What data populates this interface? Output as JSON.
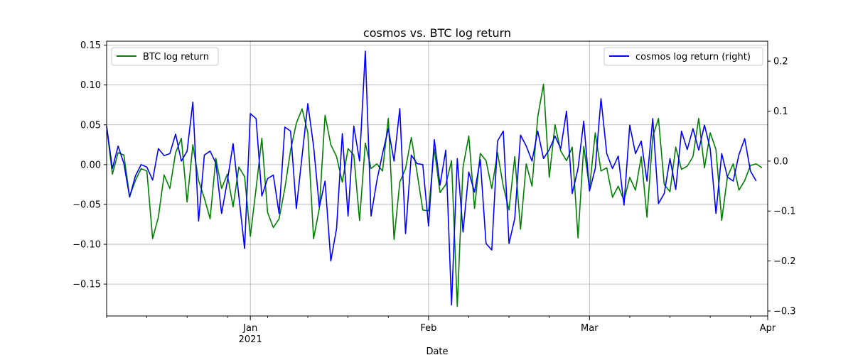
{
  "chart_data": {
    "type": "line",
    "title": "cosmos vs. BTC log return",
    "xlabel": "Date",
    "ylabel_left": "",
    "ylabel_right": "",
    "x_ticks": [
      {
        "date": "2021-01-01",
        "label": "Jan",
        "sublabel": "2021"
      },
      {
        "date": "2021-02-01",
        "label": "Feb",
        "sublabel": ""
      },
      {
        "date": "2021-03-01",
        "label": "Mar",
        "sublabel": ""
      },
      {
        "date": "2021-04-01",
        "label": "Apr",
        "sublabel": ""
      }
    ],
    "x_range": [
      "2020-12-07",
      "2021-04-01"
    ],
    "y_left": {
      "range": [
        -0.19,
        0.155
      ],
      "ticks": [
        -0.15,
        -0.1,
        -0.05,
        0.0,
        0.05,
        0.1,
        0.15
      ],
      "tick_labels": [
        "−0.15",
        "−0.10",
        "−0.05",
        "0.00",
        "0.05",
        "0.10",
        "0.15"
      ]
    },
    "y_right": {
      "range": [
        -0.31,
        0.24
      ],
      "ticks": [
        -0.3,
        -0.2,
        -0.1,
        0.0,
        0.1,
        0.2
      ],
      "tick_labels": [
        "−0.3",
        "−0.2",
        "−0.1",
        "0.0",
        "0.1",
        "0.2"
      ]
    },
    "grid": true,
    "series": [
      {
        "name": "BTC log return",
        "axis": "left",
        "color": "#008000",
        "legend_position": "upper-left",
        "values": [
          0.048,
          -0.012,
          0.015,
          0.012,
          -0.04,
          -0.02,
          -0.005,
          -0.008,
          -0.093,
          -0.066,
          -0.013,
          -0.03,
          0.015,
          0.033,
          -0.047,
          0.025,
          -0.02,
          -0.042,
          -0.068,
          0.008,
          -0.03,
          -0.012,
          -0.053,
          -0.003,
          -0.015,
          -0.09,
          -0.03,
          0.033,
          -0.06,
          -0.079,
          -0.068,
          -0.03,
          0.018,
          0.052,
          0.07,
          0.04,
          -0.093,
          -0.055,
          0.062,
          0.025,
          0.01,
          -0.022,
          0.02,
          0.012,
          -0.07,
          0.027,
          -0.005,
          0.001,
          -0.008,
          0.058,
          -0.094,
          -0.022,
          -0.005,
          0.034,
          -0.01,
          -0.057,
          -0.058,
          0.02,
          -0.035,
          -0.025,
          0.005,
          -0.178,
          -0.003,
          0.036,
          -0.055,
          0.014,
          0.005,
          -0.03,
          0.015,
          -0.027,
          -0.057,
          0.01,
          -0.081,
          0.001,
          -0.027,
          0.06,
          0.101,
          -0.016,
          0.05,
          0.017,
          0.005,
          0.022,
          -0.092,
          0.023,
          -0.03,
          0.04,
          -0.008,
          -0.004,
          -0.041,
          -0.027,
          -0.045,
          -0.016,
          -0.032,
          0.01,
          -0.066,
          0.035,
          0.058,
          -0.025,
          -0.034,
          0.022,
          -0.006,
          -0.002,
          0.01,
          0.058,
          -0.004,
          0.04,
          0.019,
          -0.07,
          -0.015,
          0.001,
          -0.032,
          -0.02,
          -0.001,
          0.001,
          -0.004
        ]
      },
      {
        "name": "cosmos log return (right)",
        "axis": "right",
        "color": "#0000ff",
        "legend_position": "upper-right",
        "values": [
          0.07,
          -0.015,
          0.03,
          -0.005,
          -0.072,
          -0.03,
          -0.007,
          -0.012,
          -0.038,
          0.025,
          0.011,
          0.015,
          0.054,
          0.0,
          0.02,
          0.118,
          -0.12,
          0.012,
          0.02,
          -0.004,
          -0.105,
          -0.04,
          0.035,
          -0.07,
          -0.175,
          0.095,
          0.085,
          -0.07,
          -0.035,
          -0.028,
          -0.105,
          0.068,
          0.06,
          -0.095,
          0.01,
          0.115,
          0.03,
          -0.092,
          -0.04,
          -0.2,
          -0.135,
          0.055,
          -0.11,
          0.07,
          0.0,
          0.22,
          -0.11,
          -0.04,
          0.015,
          0.065,
          0.0,
          0.105,
          -0.145,
          0.012,
          -0.005,
          -0.007,
          -0.13,
          0.043,
          -0.048,
          0.022,
          -0.288,
          0.005,
          -0.142,
          -0.022,
          -0.062,
          0.003,
          -0.165,
          -0.178,
          0.04,
          0.06,
          -0.165,
          -0.115,
          0.052,
          0.03,
          0.0,
          0.06,
          0.005,
          0.023,
          0.05,
          0.025,
          0.1,
          -0.065,
          -0.015,
          0.08,
          -0.06,
          -0.015,
          0.125,
          0.015,
          -0.015,
          0.01,
          -0.088,
          0.072,
          0.015,
          0.04,
          -0.04,
          0.085,
          -0.085,
          -0.065,
          0.005,
          -0.057,
          0.06,
          0.023,
          0.065,
          0.022,
          0.072,
          0.025,
          -0.105,
          0.015,
          -0.032,
          -0.04,
          0.013,
          0.045,
          -0.02,
          -0.04
        ]
      }
    ]
  }
}
